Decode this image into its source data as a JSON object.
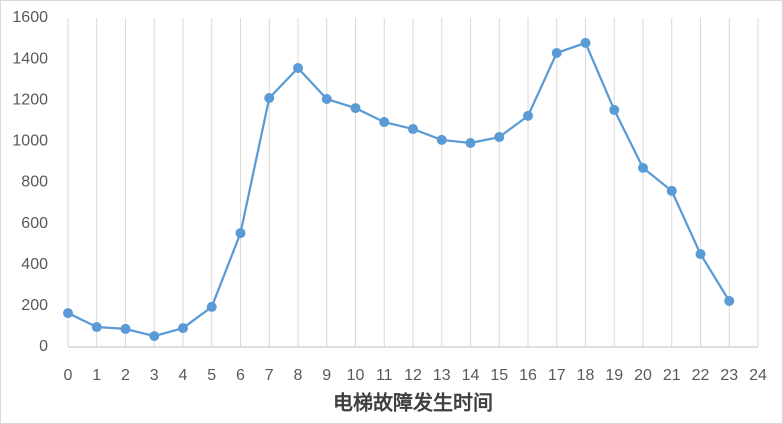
{
  "chart_data": {
    "type": "line",
    "x_label": "电梯故障发生时间",
    "x": [
      0,
      1,
      2,
      3,
      4,
      5,
      6,
      7,
      8,
      9,
      10,
      11,
      12,
      13,
      14,
      15,
      16,
      17,
      18,
      19,
      20,
      21,
      22,
      23
    ],
    "series": [
      {
        "color": "#5b9bd5",
        "values": [
          165,
          97,
          88,
          53,
          92,
          195,
          554,
          1211,
          1357,
          1206,
          1162,
          1094,
          1060,
          1007,
          992,
          1021,
          1124,
          1430,
          1479,
          1153,
          871,
          759,
          452,
          224
        ]
      }
    ],
    "xlim": [
      0,
      24
    ],
    "xticks": [
      0,
      1,
      2,
      3,
      4,
      5,
      6,
      7,
      8,
      9,
      10,
      11,
      12,
      13,
      14,
      15,
      16,
      17,
      18,
      19,
      20,
      21,
      22,
      23,
      24
    ],
    "ylim": [
      0,
      1600
    ],
    "yticks": [
      0,
      200,
      400,
      600,
      800,
      1000,
      1200,
      1400,
      1600
    ],
    "grid": "x"
  }
}
